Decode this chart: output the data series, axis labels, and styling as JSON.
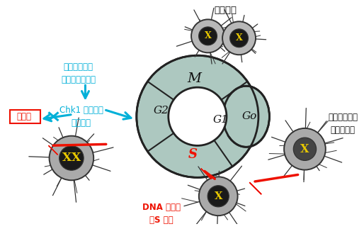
{
  "bg_color": "#ffffff",
  "cycle_fill": "#adc8c0",
  "cycle_edge": "#222222",
  "text_cyan": "#00B0D8",
  "text_red": "#EE1100",
  "text_black": "#111111",
  "label_M": "M",
  "label_G2": "G2",
  "label_G1": "G1",
  "label_S": "S",
  "label_G0": "Go",
  "ann_tekisetsu": "適切な濃度の\nカンプトテシン",
  "ann_chk1": "Chk1 キナーゼ\nの活性化",
  "ann_saiboshi": "細胞死",
  "ann_saibobunretsu": "細胞分裂",
  "ann_noukousoku": "脳梗塞モデル\nニューロン",
  "ann_dna": "DNA の複製\n（S 期）",
  "neuron_body": "#b0b0b0",
  "neuron_edge": "#333333",
  "nucleus_dark": "#1a1a1a",
  "nucleus_gray": "#888888",
  "chrom_color": "#e8c800",
  "fig_w": 5.14,
  "fig_h": 3.23,
  "dpi": 100
}
